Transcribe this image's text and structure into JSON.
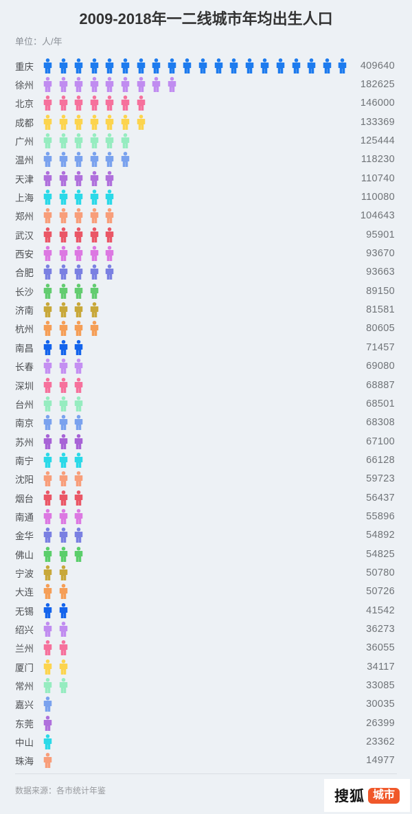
{
  "page": {
    "title": "2009-2018年一二线城市年均出生人口",
    "unit_label": "单位：人/年"
  },
  "footer": {
    "source": "数据来源：各市统计年鉴",
    "logo_text": "搜狐",
    "logo_badge_text": "城市",
    "logo_badge_color": "#f0582a"
  },
  "chart_data": {
    "type": "bar",
    "subtype": "pictogram-person-rows",
    "title": "2009-2018年一二线城市年均出生人口",
    "unit": "人/年",
    "legend_position": "none",
    "grid": false,
    "rows": [
      {
        "city": "重庆",
        "value": 409640,
        "icons": 20,
        "color": "#1d7bee"
      },
      {
        "city": "徐州",
        "value": 182625,
        "icons": 9,
        "color": "#c08cf0"
      },
      {
        "city": "北京",
        "value": 146000,
        "icons": 7,
        "color": "#f6719c"
      },
      {
        "city": "成都",
        "value": 133369,
        "icons": 7,
        "color": "#fcd44e"
      },
      {
        "city": "广州",
        "value": 125444,
        "icons": 6,
        "color": "#96ecc0"
      },
      {
        "city": "温州",
        "value": 118230,
        "icons": 6,
        "color": "#7aa2ee"
      },
      {
        "city": "天津",
        "value": 110740,
        "icons": 5,
        "color": "#af70dc"
      },
      {
        "city": "上海",
        "value": 110080,
        "icons": 5,
        "color": "#2bd9e8"
      },
      {
        "city": "郑州",
        "value": 104643,
        "icons": 5,
        "color": "#f89e7a"
      },
      {
        "city": "武汉",
        "value": 95901,
        "icons": 5,
        "color": "#ea5766"
      },
      {
        "city": "西安",
        "value": 93670,
        "icons": 5,
        "color": "#dc78e2"
      },
      {
        "city": "合肥",
        "value": 93663,
        "icons": 5,
        "color": "#7a80e2"
      },
      {
        "city": "长沙",
        "value": 89150,
        "icons": 4,
        "color": "#63cc70"
      },
      {
        "city": "济南",
        "value": 81581,
        "icons": 4,
        "color": "#c8a83a"
      },
      {
        "city": "杭州",
        "value": 80605,
        "icons": 4,
        "color": "#f59e56"
      },
      {
        "city": "南昌",
        "value": 71457,
        "icons": 3,
        "color": "#1464ec"
      },
      {
        "city": "长春",
        "value": 69080,
        "icons": 3,
        "color": "#c48ff2"
      },
      {
        "city": "深圳",
        "value": 68887,
        "icons": 3,
        "color": "#f6719c"
      },
      {
        "city": "台州",
        "value": 68501,
        "icons": 3,
        "color": "#96ecc0"
      },
      {
        "city": "南京",
        "value": 68308,
        "icons": 3,
        "color": "#7aa2ee"
      },
      {
        "city": "苏州",
        "value": 67100,
        "icons": 3,
        "color": "#a763d6"
      },
      {
        "city": "南宁",
        "value": 66128,
        "icons": 3,
        "color": "#2bd9e8"
      },
      {
        "city": "沈阳",
        "value": 59723,
        "icons": 3,
        "color": "#f89e7a"
      },
      {
        "city": "烟台",
        "value": 56437,
        "icons": 3,
        "color": "#ea5766"
      },
      {
        "city": "南通",
        "value": 55896,
        "icons": 3,
        "color": "#dc78e2"
      },
      {
        "city": "金华",
        "value": 54892,
        "icons": 3,
        "color": "#7a80e2"
      },
      {
        "city": "佛山",
        "value": 54825,
        "icons": 3,
        "color": "#5bce6b"
      },
      {
        "city": "宁波",
        "value": 50780,
        "icons": 2,
        "color": "#c8a83a"
      },
      {
        "city": "大连",
        "value": 50726,
        "icons": 2,
        "color": "#f59e56"
      },
      {
        "city": "无锡",
        "value": 41542,
        "icons": 2,
        "color": "#1464ec"
      },
      {
        "city": "绍兴",
        "value": 36273,
        "icons": 2,
        "color": "#c08cf0"
      },
      {
        "city": "兰州",
        "value": 36055,
        "icons": 2,
        "color": "#f6719c"
      },
      {
        "city": "厦门",
        "value": 34117,
        "icons": 2,
        "color": "#fcd44e"
      },
      {
        "city": "常州",
        "value": 33085,
        "icons": 2,
        "color": "#96ecc0"
      },
      {
        "city": "嘉兴",
        "value": 30035,
        "icons": 1,
        "color": "#7aa2ee"
      },
      {
        "city": "东莞",
        "value": 26399,
        "icons": 1,
        "color": "#af70dc"
      },
      {
        "city": "中山",
        "value": 23362,
        "icons": 1,
        "color": "#2bd9e8"
      },
      {
        "city": "珠海",
        "value": 14977,
        "icons": 1,
        "color": "#f89e7a"
      }
    ]
  }
}
